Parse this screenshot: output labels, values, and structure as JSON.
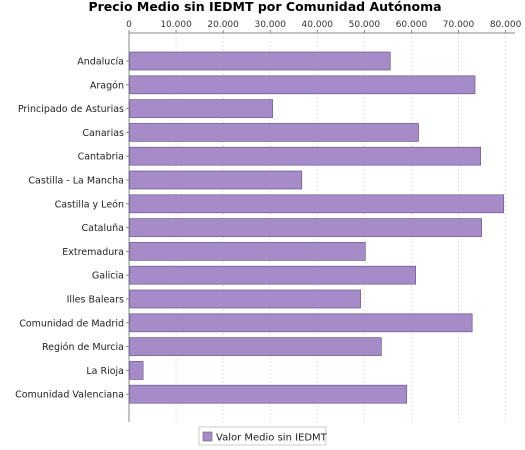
{
  "chart_data": {
    "type": "bar",
    "orientation": "horizontal",
    "title": "Precio Medio sin IEDMT por Comunidad Autónoma",
    "xlim": [
      0,
      82000
    ],
    "x_ticks": [
      "0",
      "10.000",
      "20.000",
      "30.000",
      "40.000",
      "50.000",
      "60.000",
      "70.000",
      "80.000"
    ],
    "x_tick_values": [
      0,
      10000,
      20000,
      30000,
      40000,
      50000,
      60000,
      70000,
      80000
    ],
    "x_axis_position": "top",
    "grid": true,
    "legend_position": "bottom",
    "color": "#a58cc8",
    "categories": [
      "Andalucía",
      "Aragón",
      "Principado de Asturias",
      "Canarias",
      "Cantabria",
      "Castilla - La Mancha",
      "Castilla y León",
      "Cataluña",
      "Extremadura",
      "Galicia",
      "Illes Balears",
      "Comunidad de Madrid",
      "Región de Murcia",
      "La Rioja",
      "Comunidad Valenciana"
    ],
    "series": [
      {
        "name": "Valor Medio sin IEDMT",
        "values": [
          55500,
          73500,
          30500,
          61500,
          74700,
          36700,
          79600,
          74900,
          50200,
          60900,
          49200,
          72900,
          53600,
          3000,
          59000
        ]
      }
    ]
  }
}
